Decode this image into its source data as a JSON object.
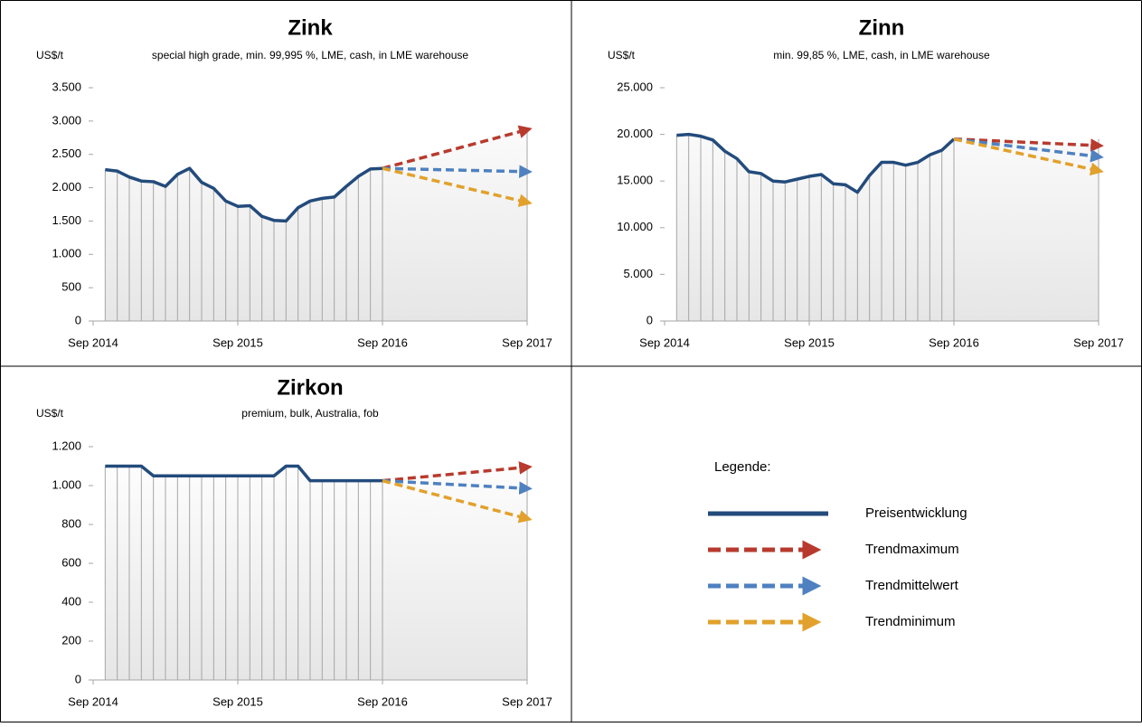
{
  "chart_data": [
    {
      "type": "line",
      "title": "Zink",
      "subtitle": "special high grade, min. 99,995 %, LME, cash, in LME warehouse",
      "y_label": "US$/t",
      "x": [
        "2014-10",
        "2014-11",
        "2014-12",
        "2015-01",
        "2015-02",
        "2015-03",
        "2015-04",
        "2015-05",
        "2015-06",
        "2015-07",
        "2015-08",
        "2015-09",
        "2015-10",
        "2015-11",
        "2015-12",
        "2016-01",
        "2016-02",
        "2016-03",
        "2016-04",
        "2016-05",
        "2016-06",
        "2016-07",
        "2016-08",
        "2016-09"
      ],
      "xlim": [
        "2014-09",
        "2017-09"
      ],
      "xticks": [
        {
          "value": "2014-09",
          "label": "Sep 2014"
        },
        {
          "value": "2015-09",
          "label": "Sep 2015"
        },
        {
          "value": "2016-09",
          "label": "Sep 2016"
        },
        {
          "value": "2017-09",
          "label": "Sep 2017"
        }
      ],
      "ylim": [
        0,
        3500
      ],
      "yticks": [
        0,
        500,
        {
          "value": 1000,
          "label": "1.000"
        },
        {
          "value": 1500,
          "label": "1.500"
        },
        {
          "value": 2000,
          "label": "2.000"
        },
        {
          "value": 2500,
          "label": "2.500"
        },
        {
          "value": 3000,
          "label": "3.000"
        },
        {
          "value": 3500,
          "label": "3.500"
        }
      ],
      "series": [
        {
          "name": "Preisentwicklung",
          "color": "#234b7c",
          "style": "solid",
          "values": [
            2270,
            2250,
            2160,
            2100,
            2090,
            2020,
            2200,
            2290,
            2080,
            1990,
            1800,
            1720,
            1730,
            1570,
            1510,
            1500,
            1700,
            1800,
            1840,
            1860,
            2020,
            2170,
            2280,
            2290
          ]
        },
        {
          "name": "Trendmaximum",
          "color": "#b83a2e",
          "style": "dashed",
          "arrow": true,
          "x": [
            "2016-09",
            "2017-09"
          ],
          "values": [
            2290,
            2870
          ]
        },
        {
          "name": "Trendmittelwert",
          "color": "#4f81c0",
          "style": "dashed",
          "arrow": true,
          "x": [
            "2016-09",
            "2017-09"
          ],
          "values": [
            2290,
            2240
          ]
        },
        {
          "name": "Trendminimum",
          "color": "#e2a12c",
          "style": "dashed",
          "arrow": true,
          "x": [
            "2016-09",
            "2017-09"
          ],
          "values": [
            2290,
            1780
          ]
        }
      ]
    },
    {
      "type": "line",
      "title": "Zinn",
      "subtitle": "min. 99,85 %, LME, cash, in LME warehouse",
      "y_label": "US$/t",
      "x": [
        "2014-10",
        "2014-11",
        "2014-12",
        "2015-01",
        "2015-02",
        "2015-03",
        "2015-04",
        "2015-05",
        "2015-06",
        "2015-07",
        "2015-08",
        "2015-09",
        "2015-10",
        "2015-11",
        "2015-12",
        "2016-01",
        "2016-02",
        "2016-03",
        "2016-04",
        "2016-05",
        "2016-06",
        "2016-07",
        "2016-08",
        "2016-09"
      ],
      "xlim": [
        "2014-09",
        "2017-09"
      ],
      "xticks": [
        {
          "value": "2014-09",
          "label": "Sep 2014"
        },
        {
          "value": "2015-09",
          "label": "Sep 2015"
        },
        {
          "value": "2016-09",
          "label": "Sep 2016"
        },
        {
          "value": "2017-09",
          "label": "Sep 2017"
        }
      ],
      "ylim": [
        0,
        25000
      ],
      "yticks": [
        0,
        {
          "value": 5000,
          "label": "5.000"
        },
        {
          "value": 10000,
          "label": "10.000"
        },
        {
          "value": 15000,
          "label": "15.000"
        },
        {
          "value": 20000,
          "label": "20.000"
        },
        {
          "value": 25000,
          "label": "25.000"
        }
      ],
      "series": [
        {
          "name": "Preisentwicklung",
          "color": "#234b7c",
          "style": "solid",
          "values": [
            19900,
            20000,
            19800,
            19400,
            18200,
            17400,
            16000,
            15800,
            15000,
            14900,
            15200,
            15500,
            15700,
            14700,
            14600,
            13800,
            15600,
            17000,
            17000,
            16700,
            17000,
            17800,
            18300,
            19500
          ]
        },
        {
          "name": "Trendmaximum",
          "color": "#b83a2e",
          "style": "dashed",
          "arrow": true,
          "x": [
            "2016-09",
            "2017-09"
          ],
          "values": [
            19500,
            18800
          ]
        },
        {
          "name": "Trendmittelwert",
          "color": "#4f81c0",
          "style": "dashed",
          "arrow": true,
          "x": [
            "2016-09",
            "2017-09"
          ],
          "values": [
            19500,
            17600
          ]
        },
        {
          "name": "Trendminimum",
          "color": "#e2a12c",
          "style": "dashed",
          "arrow": true,
          "x": [
            "2016-09",
            "2017-09"
          ],
          "values": [
            19500,
            16100
          ]
        }
      ]
    },
    {
      "type": "line",
      "title": "Zirkon",
      "subtitle": "premium, bulk, Australia, fob",
      "y_label": "US$/t",
      "x": [
        "2014-10",
        "2014-11",
        "2014-12",
        "2015-01",
        "2015-02",
        "2015-03",
        "2015-04",
        "2015-05",
        "2015-06",
        "2015-07",
        "2015-08",
        "2015-09",
        "2015-10",
        "2015-11",
        "2015-12",
        "2016-01",
        "2016-02",
        "2016-03",
        "2016-04",
        "2016-05",
        "2016-06",
        "2016-07",
        "2016-08",
        "2016-09"
      ],
      "xlim": [
        "2014-09",
        "2017-09"
      ],
      "xticks": [
        {
          "value": "2014-09",
          "label": "Sep 2014"
        },
        {
          "value": "2015-09",
          "label": "Sep 2015"
        },
        {
          "value": "2016-09",
          "label": "Sep 2016"
        },
        {
          "value": "2017-09",
          "label": "Sep 2017"
        }
      ],
      "ylim": [
        0,
        1200
      ],
      "yticks": [
        0,
        200,
        400,
        600,
        800,
        {
          "value": 1000,
          "label": "1.000"
        },
        {
          "value": 1200,
          "label": "1.200"
        }
      ],
      "series": [
        {
          "name": "Preisentwicklung",
          "color": "#234b7c",
          "style": "solid",
          "values": [
            1100,
            1100,
            1100,
            1100,
            1050,
            1050,
            1050,
            1050,
            1050,
            1050,
            1050,
            1050,
            1050,
            1050,
            1050,
            1100,
            1100,
            1025,
            1025,
            1025,
            1025,
            1025,
            1025,
            1025
          ]
        },
        {
          "name": "Trendmaximum",
          "color": "#b83a2e",
          "style": "dashed",
          "arrow": true,
          "x": [
            "2016-09",
            "2017-09"
          ],
          "values": [
            1025,
            1095
          ]
        },
        {
          "name": "Trendmittelwert",
          "color": "#4f81c0",
          "style": "dashed",
          "arrow": true,
          "x": [
            "2016-09",
            "2017-09"
          ],
          "values": [
            1025,
            985
          ]
        },
        {
          "name": "Trendminimum",
          "color": "#e2a12c",
          "style": "dashed",
          "arrow": true,
          "x": [
            "2016-09",
            "2017-09"
          ],
          "values": [
            1025,
            830
          ]
        }
      ]
    }
  ],
  "legend": {
    "title": "Legende:"
  }
}
